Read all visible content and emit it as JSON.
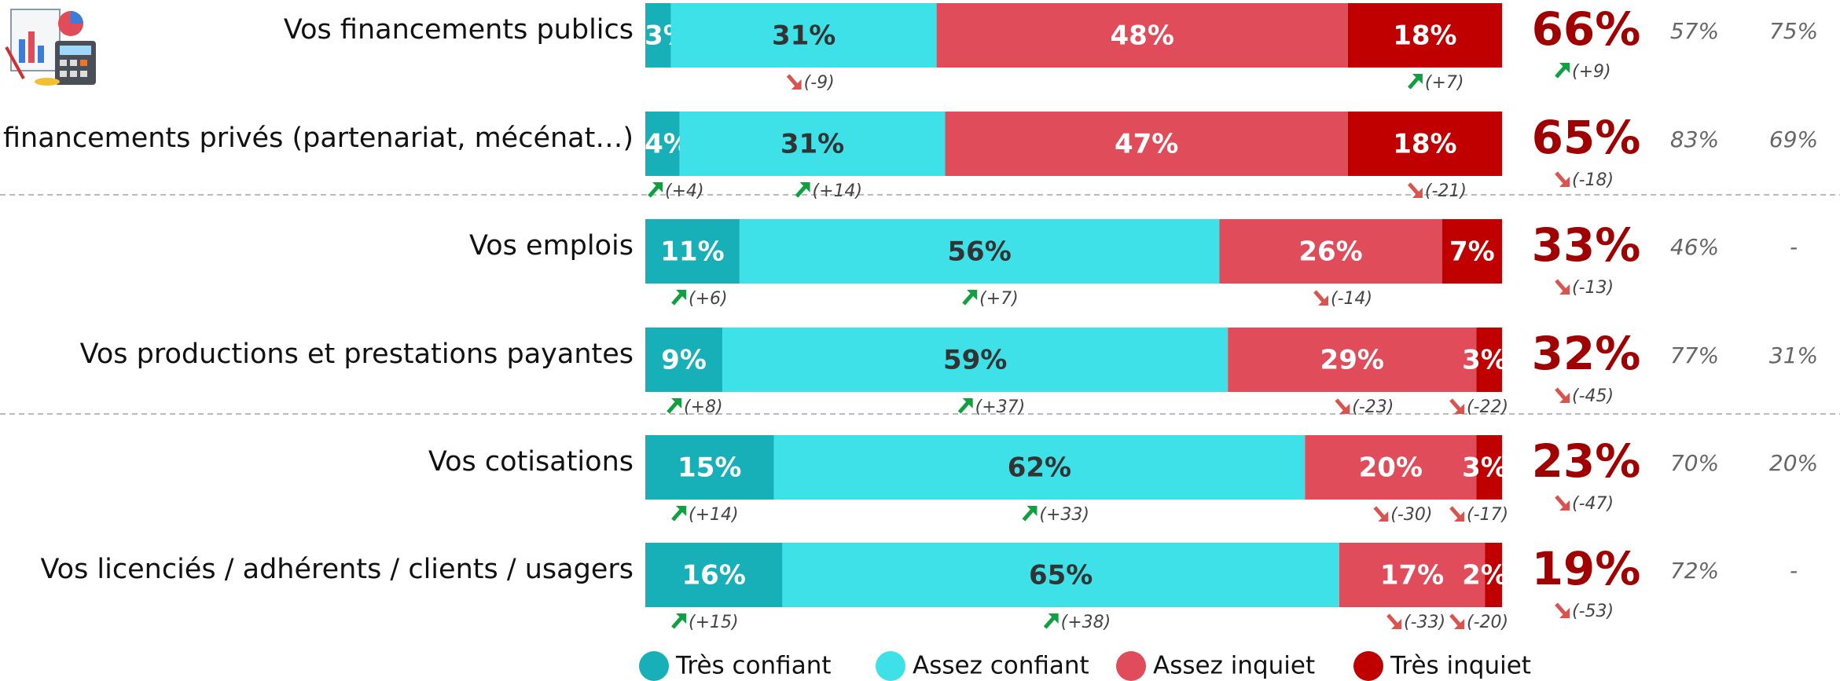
{
  "chart_data": {
    "type": "bar",
    "orientation": "horizontal",
    "stacked": true,
    "xlim": [
      0,
      100
    ],
    "categories": [
      "Vos financements publics",
      "Vos financements privés (partenariat, mécénat…)",
      "Vos emplois",
      "Vos productions et prestations payantes",
      "Vos cotisations",
      "Vos licenciés / adhérents / clients / usagers"
    ],
    "series": [
      {
        "name": "Très confiant",
        "color": "#17afb8",
        "text_color": "#ffffff",
        "values": [
          3,
          4,
          11,
          9,
          15,
          16
        ],
        "value_labels": [
          "3%",
          "4%",
          "11%",
          "9%",
          "15%",
          "16%"
        ],
        "changes": [
          null,
          4,
          6,
          8,
          14,
          15
        ],
        "change_labels": [
          null,
          "(+4)",
          "(+6)",
          "(+8)",
          "(+14)",
          "(+15)"
        ]
      },
      {
        "name": "Assez confiant",
        "color": "#3fe1e9",
        "text_color": "#333333",
        "values": [
          31,
          31,
          56,
          59,
          62,
          65
        ],
        "value_labels": [
          "31%",
          "31%",
          "56%",
          "59%",
          "62%",
          "65%"
        ],
        "changes": [
          -9,
          14,
          7,
          37,
          33,
          38
        ],
        "change_labels": [
          "(-9)",
          "(+14)",
          "(+7)",
          "(+37)",
          "(+33)",
          "(+38)"
        ]
      },
      {
        "name": "Assez inquiet",
        "color": "#e04c5a",
        "text_color": "#ffffff",
        "values": [
          48,
          47,
          26,
          29,
          20,
          17
        ],
        "value_labels": [
          "48%",
          "47%",
          "26%",
          "29%",
          "20%",
          "17%"
        ],
        "changes": [
          null,
          null,
          -14,
          -23,
          -30,
          -33
        ],
        "change_labels": [
          null,
          null,
          "(-14)",
          "(-23)",
          "(-30)",
          "(-33)"
        ]
      },
      {
        "name": "Très inquiet",
        "color": "#c00000",
        "text_color": "#ffffff",
        "values": [
          18,
          18,
          7,
          3,
          3,
          2
        ],
        "value_labels": [
          "18%",
          "18%",
          "7%",
          "3%",
          "3%",
          "2%"
        ],
        "changes": [
          7,
          -21,
          null,
          -22,
          -17,
          -20
        ],
        "change_labels": [
          "(+7)",
          "(-21)",
          null,
          "(-22)",
          "(-17)",
          "(-20)"
        ]
      }
    ],
    "totals": {
      "color": "#a00000",
      "values": [
        66,
        65,
        33,
        32,
        23,
        19
      ],
      "value_labels": [
        "66%",
        "65%",
        "33%",
        "32%",
        "23%",
        "19%"
      ],
      "changes": [
        9,
        -18,
        -13,
        -45,
        -47,
        -53
      ],
      "change_labels": [
        "(+9)",
        "(-18)",
        "(-13)",
        "(-45)",
        "(-47)",
        "(-53)"
      ]
    },
    "extra_columns": [
      {
        "values": [
          57,
          83,
          46,
          77,
          70,
          72
        ],
        "value_labels": [
          "57%",
          "83%",
          "46%",
          "77%",
          "70%",
          "72%"
        ]
      },
      {
        "values": [
          75,
          69,
          null,
          31,
          20,
          null
        ],
        "value_labels": [
          "75%",
          "69%",
          "-",
          "31%",
          "20%",
          "-"
        ]
      }
    ],
    "up_color": "#10a040",
    "down_color": "#d9534f"
  }
}
